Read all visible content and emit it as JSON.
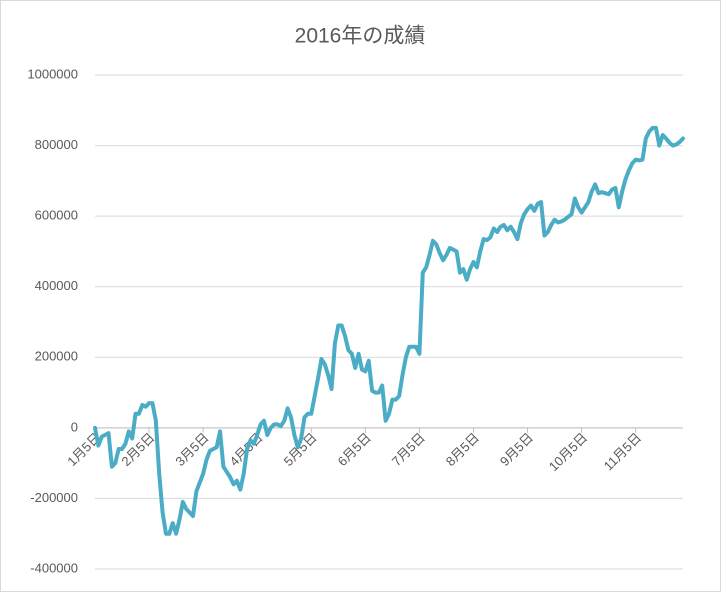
{
  "chart_data": {
    "type": "line",
    "title": "2016年の成績",
    "categories": [
      "1月5日",
      null,
      null,
      null,
      null,
      null,
      null,
      null,
      null,
      null,
      null,
      null,
      null,
      null,
      null,
      null,
      "2月5日",
      null,
      null,
      null,
      null,
      null,
      null,
      null,
      null,
      null,
      null,
      null,
      null,
      null,
      null,
      null,
      "3月5日",
      null,
      null,
      null,
      null,
      null,
      null,
      null,
      null,
      null,
      null,
      null,
      null,
      null,
      null,
      null,
      "4月5日",
      null,
      null,
      null,
      null,
      null,
      null,
      null,
      null,
      null,
      null,
      null,
      null,
      null,
      null,
      null,
      "5月5日",
      null,
      null,
      null,
      null,
      null,
      null,
      null,
      null,
      null,
      null,
      null,
      null,
      null,
      null,
      null,
      "6月5日",
      null,
      null,
      null,
      null,
      null,
      null,
      null,
      null,
      null,
      null,
      null,
      null,
      null,
      null,
      null,
      "7月5日",
      null,
      null,
      null,
      null,
      null,
      null,
      null,
      null,
      null,
      null,
      null,
      null,
      null,
      null,
      null,
      "8月5日",
      null,
      null,
      null,
      null,
      null,
      null,
      null,
      null,
      null,
      null,
      null,
      null,
      null,
      null,
      null,
      "9月5日",
      null,
      null,
      null,
      null,
      null,
      null,
      null,
      null,
      null,
      null,
      null,
      null,
      null,
      null,
      null,
      "10月5日",
      null,
      null,
      null,
      null,
      null,
      null,
      null,
      null,
      null,
      null,
      null,
      null,
      null,
      null,
      null,
      "11月5日",
      null,
      null,
      null,
      null,
      null,
      null,
      null,
      null,
      null,
      null,
      null,
      null,
      null,
      null
    ],
    "series": [
      {
        "color": "#4bacc6",
        "values": [
          0,
          -50000,
          -25000,
          -20000,
          -15000,
          -110000,
          -100000,
          -60000,
          -60000,
          -45000,
          -10000,
          -30000,
          40000,
          40000,
          65000,
          60000,
          70000,
          70000,
          20000,
          -130000,
          -240000,
          -300000,
          -300000,
          -270000,
          -300000,
          -260000,
          -210000,
          -230000,
          -240000,
          -250000,
          -180000,
          -155000,
          -130000,
          -90000,
          -65000,
          -60000,
          -55000,
          -10000,
          -110000,
          -125000,
          -140000,
          -160000,
          -150000,
          -175000,
          -130000,
          -60000,
          -35000,
          -45000,
          -20000,
          10000,
          20000,
          -20000,
          0,
          10000,
          10000,
          5000,
          20000,
          55000,
          30000,
          -20000,
          -55000,
          -30000,
          30000,
          40000,
          40000,
          90000,
          140000,
          195000,
          180000,
          150000,
          110000,
          240000,
          290000,
          290000,
          260000,
          220000,
          210000,
          170000,
          210000,
          165000,
          160000,
          190000,
          105000,
          100000,
          100000,
          120000,
          20000,
          40000,
          80000,
          80000,
          90000,
          150000,
          200000,
          230000,
          230000,
          230000,
          210000,
          440000,
          455000,
          490000,
          530000,
          520000,
          495000,
          475000,
          490000,
          510000,
          505000,
          500000,
          440000,
          450000,
          420000,
          450000,
          470000,
          455000,
          500000,
          535000,
          532000,
          540000,
          565000,
          555000,
          570000,
          575000,
          560000,
          570000,
          555000,
          535000,
          580000,
          605000,
          620000,
          630000,
          615000,
          635000,
          640000,
          545000,
          555000,
          575000,
          590000,
          582000,
          585000,
          590000,
          598000,
          605000,
          650000,
          625000,
          610000,
          625000,
          640000,
          670000,
          690000,
          665000,
          668000,
          665000,
          662000,
          675000,
          680000,
          625000,
          670000,
          705000,
          730000,
          750000,
          760000,
          758000,
          760000,
          820000,
          840000,
          850000,
          850000,
          800000,
          830000,
          820000,
          808000,
          800000,
          803000,
          810000,
          820000
        ]
      }
    ],
    "ylim": [
      -400000,
      1000000
    ],
    "yticks": [
      -400000,
      -200000,
      0,
      200000,
      400000,
      600000,
      800000,
      1000000
    ],
    "grid": true
  }
}
